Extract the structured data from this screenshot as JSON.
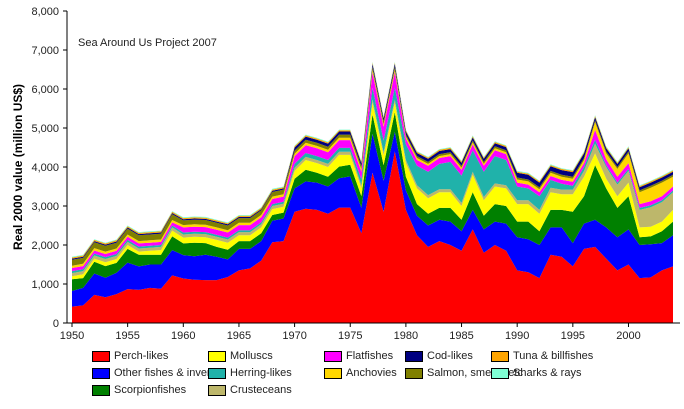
{
  "chart_data": {
    "type": "area",
    "stacked": true,
    "annotation": "Sea Around Us Project 2007",
    "xlabel": "",
    "ylabel": "Real 2000 value (million US$)",
    "xlim": [
      1950,
      2004
    ],
    "ylim": [
      0,
      8000
    ],
    "x_ticks": [
      "1950",
      "1955",
      "1960",
      "1965",
      "1970",
      "1975",
      "1980",
      "1985",
      "1990",
      "1995",
      "2000"
    ],
    "y_ticks": [
      "0",
      "1,000",
      "2,000",
      "3,000",
      "4,000",
      "5,000",
      "6,000",
      "7,000",
      "8,000"
    ],
    "x_start": 1950,
    "legend_position": "bottom",
    "series": [
      {
        "name": "Perch-likes",
        "color": "#ff0000",
        "values": [
          420,
          450,
          720,
          660,
          740,
          870,
          850,
          900,
          880,
          1220,
          1140,
          1110,
          1100,
          1100,
          1180,
          1350,
          1400,
          1600,
          2070,
          2100,
          2850,
          2930,
          2900,
          2800,
          2960,
          2960,
          2300,
          3850,
          2850,
          4400,
          2900,
          2250,
          1950,
          2100,
          2000,
          1850,
          2400,
          1800,
          2000,
          1850,
          1350,
          1300,
          1150,
          1750,
          1700,
          1450,
          1900,
          1950,
          1650,
          1350,
          1500,
          1150,
          1170,
          1350,
          1450
        ]
      },
      {
        "name": "Other fishes & inverts",
        "color": "#0000ff",
        "values": [
          400,
          450,
          550,
          500,
          550,
          680,
          600,
          600,
          620,
          650,
          600,
          600,
          650,
          600,
          450,
          550,
          500,
          500,
          550,
          580,
          600,
          700,
          700,
          700,
          750,
          800,
          650,
          1000,
          800,
          500,
          500,
          500,
          550,
          550,
          600,
          500,
          500,
          600,
          600,
          700,
          850,
          850,
          850,
          700,
          750,
          600,
          650,
          700,
          800,
          850,
          900,
          850,
          850,
          700,
          800
        ]
      },
      {
        "name": "Scorpionfishes",
        "color": "#008000",
        "values": [
          300,
          250,
          300,
          300,
          250,
          350,
          300,
          250,
          250,
          350,
          300,
          350,
          300,
          250,
          250,
          200,
          200,
          200,
          150,
          150,
          250,
          300,
          250,
          250,
          300,
          300,
          300,
          500,
          400,
          500,
          350,
          300,
          300,
          300,
          350,
          300,
          450,
          350,
          450,
          450,
          400,
          450,
          350,
          450,
          450,
          800,
          700,
          1400,
          1000,
          750,
          850,
          200,
          200,
          300,
          350
        ]
      },
      {
        "name": "Molluscs",
        "color": "#ffff00",
        "values": [
          80,
          100,
          80,
          100,
          100,
          100,
          80,
          100,
          120,
          150,
          150,
          150,
          150,
          180,
          180,
          150,
          150,
          150,
          150,
          150,
          200,
          250,
          250,
          250,
          300,
          250,
          200,
          300,
          250,
          250,
          350,
          400,
          400,
          400,
          400,
          350,
          450,
          400,
          450,
          450,
          450,
          450,
          450,
          450,
          400,
          450,
          500,
          300,
          250,
          300,
          350,
          250,
          250,
          250,
          300
        ]
      },
      {
        "name": "Crusteceans",
        "color": "#bdb76b",
        "values": [
          80,
          80,
          80,
          80,
          80,
          80,
          80,
          80,
          80,
          80,
          80,
          80,
          80,
          80,
          80,
          80,
          80,
          80,
          80,
          80,
          80,
          80,
          80,
          80,
          80,
          80,
          80,
          80,
          80,
          80,
          80,
          80,
          80,
          80,
          80,
          80,
          80,
          80,
          80,
          80,
          100,
          100,
          100,
          120,
          120,
          120,
          150,
          250,
          300,
          300,
          300,
          450,
          500,
          500,
          450
        ]
      },
      {
        "name": "Herring-likes",
        "color": "#20b2aa",
        "values": [
          50,
          50,
          50,
          50,
          50,
          50,
          50,
          50,
          50,
          50,
          50,
          50,
          50,
          50,
          50,
          50,
          50,
          50,
          50,
          50,
          100,
          100,
          100,
          100,
          100,
          100,
          150,
          300,
          300,
          300,
          400,
          500,
          600,
          650,
          700,
          700,
          550,
          650,
          700,
          650,
          350,
          300,
          350,
          200,
          150,
          100,
          100,
          100,
          50,
          50,
          50,
          50,
          50,
          50,
          50
        ]
      },
      {
        "name": "Flatfishes",
        "color": "#ff00ff",
        "values": [
          80,
          80,
          80,
          80,
          80,
          80,
          80,
          80,
          80,
          80,
          130,
          130,
          130,
          130,
          130,
          130,
          130,
          130,
          130,
          130,
          200,
          200,
          200,
          200,
          200,
          200,
          200,
          400,
          350,
          400,
          150,
          150,
          150,
          150,
          150,
          150,
          150,
          150,
          150,
          150,
          100,
          100,
          100,
          100,
          100,
          100,
          100,
          250,
          150,
          150,
          150,
          100,
          100,
          100,
          100
        ]
      },
      {
        "name": "Anchovies",
        "color": "#ffd700",
        "values": [
          60,
          60,
          60,
          60,
          60,
          60,
          60,
          60,
          60,
          60,
          60,
          60,
          60,
          60,
          60,
          60,
          60,
          60,
          60,
          60,
          60,
          60,
          60,
          60,
          60,
          60,
          60,
          60,
          60,
          60,
          50,
          50,
          50,
          50,
          50,
          50,
          50,
          50,
          50,
          50,
          80,
          80,
          80,
          80,
          80,
          80,
          80,
          200,
          150,
          200,
          250,
          300,
          350,
          350,
          250
        ]
      },
      {
        "name": "Salmon, smelts, etc",
        "color": "#808000",
        "values": [
          150,
          150,
          150,
          150,
          150,
          150,
          150,
          150,
          150,
          150,
          120,
          120,
          120,
          120,
          120,
          120,
          120,
          120,
          120,
          120,
          80,
          80,
          80,
          80,
          80,
          80,
          80,
          80,
          80,
          80,
          50,
          50,
          50,
          50,
          50,
          50,
          50,
          50,
          50,
          50,
          50,
          50,
          50,
          50,
          50,
          50,
          50,
          50,
          50,
          50,
          50,
          50,
          50,
          50,
          50
        ]
      },
      {
        "name": "Cod-likes",
        "color": "#000080",
        "values": [
          30,
          30,
          30,
          30,
          30,
          30,
          30,
          30,
          30,
          30,
          30,
          30,
          30,
          30,
          30,
          30,
          30,
          30,
          30,
          30,
          80,
          80,
          80,
          80,
          80,
          80,
          80,
          80,
          80,
          80,
          80,
          80,
          80,
          80,
          80,
          80,
          80,
          80,
          80,
          80,
          120,
          120,
          120,
          120,
          120,
          120,
          120,
          80,
          80,
          80,
          80,
          80,
          80,
          80,
          80
        ]
      },
      {
        "name": "Tuna & billfishes",
        "color": "#ffa500",
        "values": [
          30,
          30,
          30,
          30,
          30,
          30,
          30,
          30,
          30,
          30,
          30,
          30,
          30,
          30,
          30,
          30,
          30,
          30,
          30,
          30,
          30,
          30,
          30,
          30,
          30,
          30,
          30,
          30,
          30,
          30,
          30,
          30,
          30,
          30,
          30,
          30,
          30,
          30,
          30,
          30,
          30,
          30,
          30,
          30,
          30,
          30,
          30,
          30,
          30,
          30,
          30,
          30,
          30,
          30,
          30
        ]
      },
      {
        "name": "Sharks & rays",
        "color": "#7fffd4",
        "values": [
          20,
          20,
          20,
          20,
          20,
          20,
          20,
          20,
          20,
          20,
          20,
          20,
          20,
          20,
          20,
          20,
          20,
          20,
          20,
          20,
          20,
          20,
          20,
          20,
          20,
          20,
          20,
          20,
          20,
          20,
          20,
          20,
          20,
          20,
          20,
          20,
          20,
          20,
          20,
          20,
          20,
          20,
          20,
          20,
          20,
          20,
          20,
          20,
          20,
          20,
          20,
          20,
          20,
          20,
          20
        ]
      }
    ]
  }
}
